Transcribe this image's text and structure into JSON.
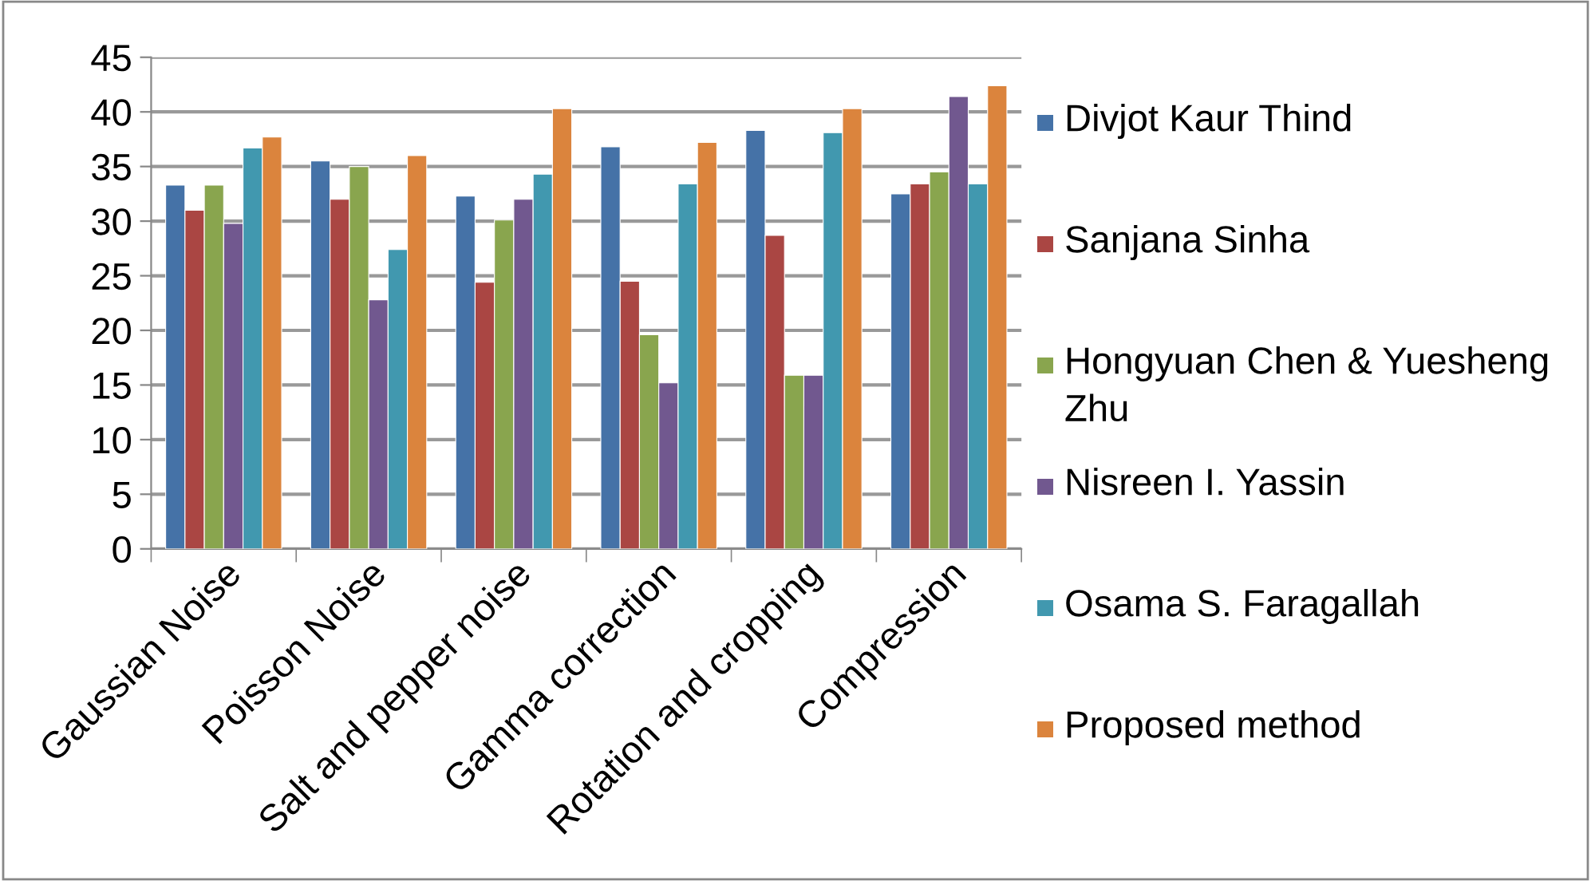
{
  "chart_data": {
    "type": "bar",
    "categories": [
      "Gaussian Noise",
      "Poisson Noise",
      "Salt and pepper noise",
      "Gamma correction",
      "Rotation and cropping",
      "Compression"
    ],
    "series": [
      {
        "name": "Divjot Kaur Thind",
        "color": "#4572a7",
        "values": [
          33.3,
          35.5,
          32.3,
          36.8,
          38.3,
          32.5
        ]
      },
      {
        "name": "Sanjana Sinha",
        "color": "#aa4643",
        "values": [
          31.0,
          32.0,
          24.4,
          24.5,
          28.7,
          33.4
        ]
      },
      {
        "name": "Hongyuan Chen & Yuesheng Zhu",
        "color": "#89a54e",
        "values": [
          33.3,
          35.0,
          30.1,
          19.6,
          15.9,
          34.5
        ]
      },
      {
        "name": "Nisreen I. Yassin",
        "color": "#71588f",
        "values": [
          29.8,
          22.8,
          32.0,
          15.2,
          15.9,
          41.4
        ]
      },
      {
        "name": "Osama S. Faragallah",
        "color": "#4198af",
        "values": [
          36.7,
          27.4,
          34.3,
          33.4,
          38.1,
          33.4
        ]
      },
      {
        "name": "Proposed method",
        "color": "#db843d",
        "values": [
          37.7,
          36.0,
          40.3,
          37.2,
          40.3,
          42.4
        ]
      }
    ],
    "ylim": [
      0,
      45
    ],
    "yticks": [
      0,
      5,
      10,
      15,
      20,
      25,
      30,
      35,
      40,
      45
    ],
    "grid": "y",
    "legend": "right"
  }
}
